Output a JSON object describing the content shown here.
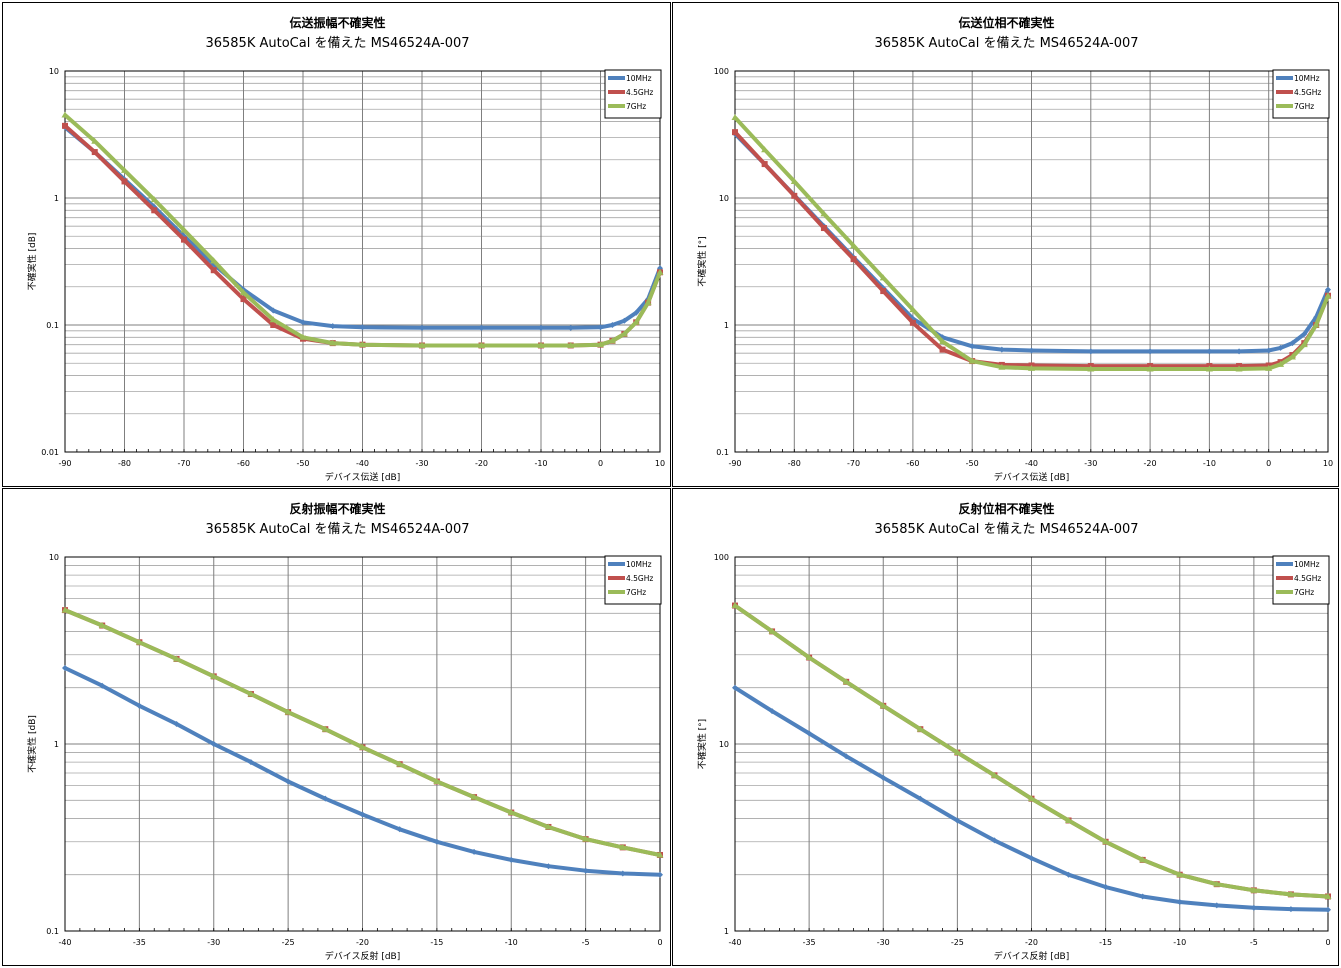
{
  "chart_data": [
    {
      "type": "line",
      "title": "伝送振幅不確実性",
      "subtitle": "36585K AutoCal を備えた MS46524A-007",
      "xlabel": "デバイス伝送 [dB]",
      "ylabel": "不確実性 [dB]",
      "xlim": [
        -90,
        10
      ],
      "ylim": [
        0.01,
        10
      ],
      "yscale": "log",
      "xticks": [
        "-90",
        "-80",
        "-70",
        "-60",
        "-50",
        "-40",
        "-30",
        "-20",
        "-10",
        "0",
        "10"
      ],
      "yticks": [
        "0.01",
        "0.1",
        "1",
        "10"
      ],
      "grid": true,
      "legend_position": "top-right",
      "x": [
        -90,
        -85,
        -80,
        -75,
        -70,
        -65,
        -60,
        -55,
        -50,
        -45,
        -40,
        -30,
        -20,
        -10,
        -5,
        0,
        2,
        4,
        6,
        8,
        10
      ],
      "series": [
        {
          "name": "10MHz",
          "color": "#4f81bd",
          "values": [
            3.6,
            2.3,
            1.4,
            0.85,
            0.5,
            0.3,
            0.19,
            0.13,
            0.105,
            0.098,
            0.096,
            0.095,
            0.095,
            0.095,
            0.095,
            0.096,
            0.1,
            0.108,
            0.125,
            0.16,
            0.28
          ]
        },
        {
          "name": "4.5GHz",
          "color": "#c0504d",
          "values": [
            3.7,
            2.3,
            1.35,
            0.8,
            0.47,
            0.27,
            0.16,
            0.1,
            0.078,
            0.072,
            0.07,
            0.069,
            0.069,
            0.069,
            0.069,
            0.07,
            0.075,
            0.085,
            0.105,
            0.15,
            0.26
          ]
        },
        {
          "name": "7GHz",
          "color": "#9bbb59",
          "values": [
            4.5,
            2.8,
            1.65,
            0.97,
            0.56,
            0.32,
            0.18,
            0.11,
            0.08,
            0.072,
            0.07,
            0.069,
            0.069,
            0.069,
            0.069,
            0.07,
            0.075,
            0.085,
            0.105,
            0.15,
            0.26
          ]
        }
      ]
    },
    {
      "type": "line",
      "title": "伝送位相不確実性",
      "subtitle": "36585K AutoCal を備えた MS46524A-007",
      "xlabel": "デバイス伝送 [dB]",
      "ylabel": "不確実性 [°]",
      "xlim": [
        -90,
        10
      ],
      "ylim": [
        0.1,
        100
      ],
      "yscale": "log",
      "xticks": [
        "-90",
        "-80",
        "-70",
        "-60",
        "-50",
        "-40",
        "-30",
        "-20",
        "-10",
        "0",
        "10"
      ],
      "yticks": [
        "0.1",
        "1",
        "10",
        "100"
      ],
      "grid": true,
      "legend_position": "top-right",
      "x": [
        -90,
        -85,
        -80,
        -75,
        -70,
        -65,
        -60,
        -55,
        -50,
        -45,
        -40,
        -30,
        -20,
        -10,
        -5,
        0,
        2,
        4,
        6,
        8,
        10
      ],
      "series": [
        {
          "name": "10MHz",
          "color": "#4f81bd",
          "values": [
            32,
            18.5,
            10.5,
            6.0,
            3.4,
            1.95,
            1.12,
            0.8,
            0.68,
            0.64,
            0.63,
            0.62,
            0.62,
            0.62,
            0.62,
            0.63,
            0.66,
            0.72,
            0.85,
            1.15,
            1.9
          ]
        },
        {
          "name": "4.5GHz",
          "color": "#c0504d",
          "values": [
            33,
            18.5,
            10.4,
            5.8,
            3.3,
            1.85,
            1.04,
            0.64,
            0.52,
            0.485,
            0.48,
            0.475,
            0.475,
            0.475,
            0.475,
            0.48,
            0.51,
            0.58,
            0.72,
            1.0,
            1.7
          ]
        },
        {
          "name": "7GHz",
          "color": "#9bbb59",
          "values": [
            43,
            24,
            13.5,
            7.5,
            4.2,
            2.35,
            1.32,
            0.74,
            0.52,
            0.465,
            0.455,
            0.45,
            0.45,
            0.45,
            0.45,
            0.455,
            0.49,
            0.56,
            0.7,
            1.0,
            1.7
          ]
        }
      ]
    },
    {
      "type": "line",
      "title": "反射振幅不確実性",
      "subtitle": "36585K AutoCal を備えた MS46524A-007",
      "xlabel": "デバイス反射 [dB]",
      "ylabel": "不確実性 [dB]",
      "xlim": [
        -40,
        0
      ],
      "ylim": [
        0.1,
        10
      ],
      "yscale": "log",
      "xticks": [
        "-40",
        "-35",
        "-30",
        "-25",
        "-20",
        "-15",
        "-10",
        "-5",
        "0"
      ],
      "yticks": [
        "0.1",
        "1",
        "10"
      ],
      "grid": true,
      "legend_position": "top-right",
      "x": [
        -40,
        -37.5,
        -35,
        -32.5,
        -30,
        -27.5,
        -25,
        -22.5,
        -20,
        -17.5,
        -15,
        -12.5,
        -10,
        -7.5,
        -5,
        -2.5,
        0
      ],
      "series": [
        {
          "name": "10MHz",
          "color": "#4f81bd",
          "values": [
            2.55,
            2.05,
            1.6,
            1.28,
            1.0,
            0.8,
            0.63,
            0.51,
            0.42,
            0.35,
            0.3,
            0.265,
            0.24,
            0.222,
            0.21,
            0.203,
            0.2
          ]
        },
        {
          "name": "4.5GHz",
          "color": "#c0504d",
          "values": [
            5.2,
            4.3,
            3.5,
            2.85,
            2.3,
            1.85,
            1.48,
            1.2,
            0.96,
            0.78,
            0.63,
            0.52,
            0.43,
            0.36,
            0.31,
            0.28,
            0.255
          ]
        },
        {
          "name": "7GHz",
          "color": "#9bbb59",
          "values": [
            5.2,
            4.3,
            3.5,
            2.85,
            2.3,
            1.85,
            1.48,
            1.2,
            0.96,
            0.78,
            0.63,
            0.52,
            0.43,
            0.36,
            0.31,
            0.28,
            0.255
          ]
        }
      ]
    },
    {
      "type": "line",
      "title": "反射位相不確実性",
      "subtitle": "36585K AutoCal を備えた MS46524A-007",
      "xlabel": "デバイス反射 [dB]",
      "ylabel": "不確実性 [°]",
      "xlim": [
        -40,
        0
      ],
      "ylim": [
        1,
        100
      ],
      "yscale": "log",
      "xticks": [
        "-40",
        "-35",
        "-30",
        "-25",
        "-20",
        "-15",
        "-10",
        "-5",
        "0"
      ],
      "yticks": [
        "1",
        "10",
        "100"
      ],
      "grid": true,
      "legend_position": "top-right",
      "x": [
        -40,
        -37.5,
        -35,
        -32.5,
        -30,
        -27.5,
        -25,
        -22.5,
        -20,
        -17.5,
        -15,
        -12.5,
        -10,
        -7.5,
        -5,
        -2.5,
        0
      ],
      "series": [
        {
          "name": "10MHz",
          "color": "#4f81bd",
          "values": [
            20,
            15,
            11.4,
            8.6,
            6.6,
            5.1,
            3.9,
            3.05,
            2.45,
            2.0,
            1.72,
            1.53,
            1.43,
            1.37,
            1.33,
            1.31,
            1.3
          ]
        },
        {
          "name": "4.5GHz",
          "color": "#c0504d",
          "values": [
            55,
            40,
            29,
            21.5,
            16,
            12,
            9.0,
            6.8,
            5.1,
            3.9,
            3.0,
            2.4,
            2.0,
            1.78,
            1.65,
            1.57,
            1.53
          ]
        },
        {
          "name": "7GHz",
          "color": "#9bbb59",
          "values": [
            55,
            40,
            29,
            21.5,
            16,
            12,
            9.0,
            6.8,
            5.1,
            3.9,
            3.0,
            2.4,
            2.0,
            1.78,
            1.65,
            1.57,
            1.53
          ]
        }
      ]
    }
  ]
}
